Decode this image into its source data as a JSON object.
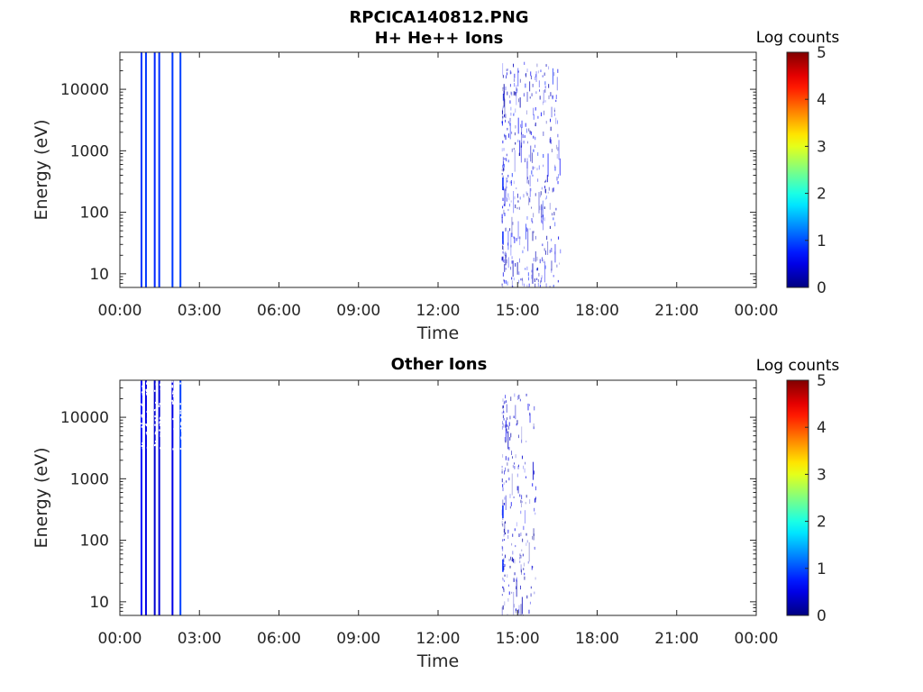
{
  "figure": {
    "title": "RPCICA140812.PNG"
  },
  "chart_data": [
    {
      "type": "heatmap",
      "title": "H+ He++ Ions",
      "xlabel": "Time",
      "ylabel": "Energy (eV)",
      "x_ticks": [
        "00:00",
        "03:00",
        "06:00",
        "09:00",
        "12:00",
        "15:00",
        "18:00",
        "21:00",
        "00:00"
      ],
      "x_range_hours": [
        0,
        24
      ],
      "y_scale": "log",
      "y_range_eV": [
        6,
        40000
      ],
      "y_ticks": [
        {
          "value": 10,
          "label": "10"
        },
        {
          "value": 100,
          "label": "100"
        },
        {
          "value": 1000,
          "label": "1000"
        },
        {
          "value": 10000,
          "label": "10000"
        }
      ],
      "colorbar": {
        "label": "Log counts",
        "range": [
          0,
          5
        ],
        "ticks": [
          "0",
          "1",
          "2",
          "3",
          "4",
          "5"
        ],
        "colormap": "jet"
      },
      "vertical_bands": [
        {
          "t_hours": 0.78,
          "width_hours": 0.06,
          "log_counts": 0.9
        },
        {
          "t_hours": 0.95,
          "width_hours": 0.06,
          "log_counts": 0.9
        },
        {
          "t_hours": 1.28,
          "width_hours": 0.06,
          "log_counts": 0.8
        },
        {
          "t_hours": 1.45,
          "width_hours": 0.06,
          "log_counts": 0.85
        },
        {
          "t_hours": 1.95,
          "width_hours": 0.06,
          "log_counts": 0.9
        },
        {
          "t_hours": 2.25,
          "width_hours": 0.06,
          "log_counts": 0.95
        }
      ],
      "scatter_region": {
        "t_start_hours": 14.4,
        "t_end_hours": 16.6,
        "e_min_eV": 6,
        "e_max_eV": 30000,
        "log_counts_max": 0.8
      }
    },
    {
      "type": "heatmap",
      "title": "Other Ions",
      "xlabel": "Time",
      "ylabel": "Energy (eV)",
      "x_ticks": [
        "00:00",
        "03:00",
        "06:00",
        "09:00",
        "12:00",
        "15:00",
        "18:00",
        "21:00",
        "00:00"
      ],
      "x_range_hours": [
        0,
        24
      ],
      "y_scale": "log",
      "y_range_eV": [
        6,
        40000
      ],
      "y_ticks": [
        {
          "value": 10,
          "label": "10"
        },
        {
          "value": 100,
          "label": "100"
        },
        {
          "value": 1000,
          "label": "1000"
        },
        {
          "value": 10000,
          "label": "10000"
        }
      ],
      "colorbar": {
        "label": "Log counts",
        "range": [
          0,
          5
        ],
        "ticks": [
          "0",
          "1",
          "2",
          "3",
          "4",
          "5"
        ],
        "colormap": "jet"
      },
      "vertical_bands": [
        {
          "t_hours": 0.78,
          "width_hours": 0.06,
          "log_counts": 0.7
        },
        {
          "t_hours": 0.95,
          "width_hours": 0.06,
          "log_counts": 0.5
        },
        {
          "t_hours": 1.28,
          "width_hours": 0.06,
          "log_counts": 0.4
        },
        {
          "t_hours": 1.45,
          "width_hours": 0.06,
          "log_counts": 0.45
        },
        {
          "t_hours": 1.95,
          "width_hours": 0.06,
          "log_counts": 0.5
        },
        {
          "t_hours": 2.25,
          "width_hours": 0.06,
          "log_counts": 0.95
        }
      ],
      "scatter_region": {
        "t_start_hours": 14.4,
        "t_end_hours": 15.7,
        "e_min_eV": 6,
        "e_max_eV": 25000,
        "log_counts_max": 0.6
      }
    }
  ]
}
